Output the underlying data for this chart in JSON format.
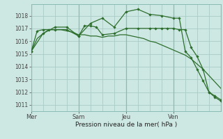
{
  "bg_color": "#cde8e2",
  "grid_color": "#aaccc6",
  "line_color": "#2d6e2d",
  "title": "Pression niveau de la mer( hPa )",
  "ylabel_ticks": [
    1011,
    1012,
    1013,
    1014,
    1015,
    1016,
    1017,
    1018
  ],
  "ylim": [
    1010.5,
    1018.9
  ],
  "xlim": [
    0,
    96
  ],
  "day_vlines": [
    0,
    24,
    48,
    72,
    96
  ],
  "xtick_pos": [
    0,
    24,
    48,
    72
  ],
  "xticklabels": [
    "Mer",
    "Sam",
    "Jeu",
    "Ven"
  ],
  "series1_x": [
    0,
    3,
    6,
    9,
    12,
    15,
    18,
    21,
    24,
    27,
    30,
    33,
    36,
    39,
    42,
    45,
    48,
    51,
    54,
    57,
    60,
    63,
    66,
    69,
    72,
    75,
    78,
    81,
    84,
    87,
    90,
    93,
    96
  ],
  "series1_y": [
    1015.2,
    1016.2,
    1016.6,
    1016.9,
    1016.9,
    1016.9,
    1016.8,
    1016.7,
    1016.5,
    1016.5,
    1016.4,
    1016.4,
    1016.3,
    1016.4,
    1016.4,
    1016.5,
    1016.5,
    1016.4,
    1016.3,
    1016.2,
    1016.0,
    1015.9,
    1015.7,
    1015.5,
    1015.3,
    1015.1,
    1014.9,
    1014.6,
    1014.2,
    1013.8,
    1013.3,
    1012.8,
    1012.3
  ],
  "series2_x": [
    0,
    3,
    6,
    9,
    12,
    18,
    24,
    27,
    30,
    33,
    36,
    42,
    48,
    54,
    60,
    63,
    66,
    69,
    72,
    75,
    78,
    81,
    84,
    87,
    90,
    93,
    96
  ],
  "series2_y": [
    1015.2,
    1016.8,
    1016.9,
    1016.9,
    1016.9,
    1016.9,
    1016.4,
    1017.2,
    1017.2,
    1017.1,
    1016.5,
    1016.6,
    1017.0,
    1017.0,
    1017.0,
    1017.0,
    1017.0,
    1017.0,
    1017.0,
    1016.9,
    1016.9,
    1015.5,
    1014.8,
    1013.8,
    1012.0,
    1011.6,
    1011.3
  ],
  "series3_x": [
    0,
    6,
    12,
    18,
    24,
    30,
    36,
    42,
    48,
    54,
    60,
    66,
    72,
    75,
    78,
    81,
    84,
    87,
    90,
    93,
    96
  ],
  "series3_y": [
    1015.2,
    1016.6,
    1017.1,
    1017.1,
    1016.4,
    1017.4,
    1017.8,
    1017.1,
    1018.3,
    1018.5,
    1018.1,
    1018.0,
    1017.8,
    1017.8,
    1015.2,
    1014.7,
    1013.8,
    1012.9,
    1012.0,
    1011.7,
    1011.4
  ]
}
